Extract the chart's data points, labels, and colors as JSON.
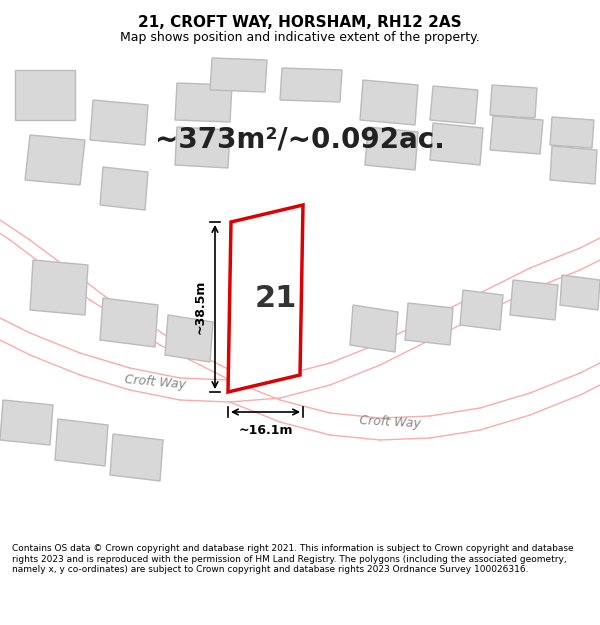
{
  "title": "21, CROFT WAY, HORSHAM, RH12 2AS",
  "subtitle": "Map shows position and indicative extent of the property.",
  "area_text": "~373m²/~0.092ac.",
  "width_label": "~16.1m",
  "height_label": "~38.5m",
  "property_number": "21",
  "road_label1": "Croft Way",
  "road_label2": "Croft Way",
  "footer_text": "Contains OS data © Crown copyright and database right 2021. This information is subject to Crown copyright and database rights 2023 and is reproduced with the permission of HM Land Registry. The polygons (including the associated geometry, namely x, y co-ordinates) are subject to Crown copyright and database rights 2023 Ordnance Survey 100026316.",
  "bg_color": "#f5f5f0",
  "map_bg": "#ffffff",
  "property_fill": "#ffffff",
  "property_edge": "#dd0000",
  "building_fill": "#d8d8d8",
  "building_edge": "#bbbbbb",
  "road_line_color": "#ffaaaa",
  "header_bg": "#ffffff",
  "footer_bg": "#ffffff"
}
